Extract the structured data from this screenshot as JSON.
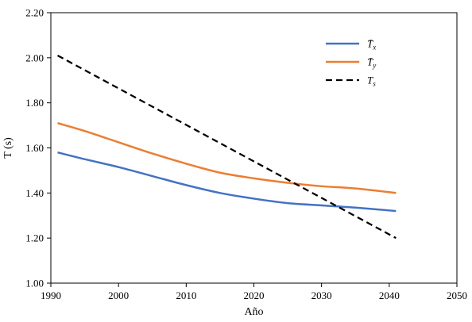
{
  "chart_data": {
    "type": "line",
    "xlabel": "Año",
    "ylabel": "T (s)",
    "xlim": [
      1990,
      2050
    ],
    "ylim": [
      1.0,
      2.2
    ],
    "xticks": [
      1990,
      2000,
      2010,
      2020,
      2030,
      2040,
      2050
    ],
    "xtick_labels": [
      "1990",
      "2000",
      "2010",
      "2020",
      "2030",
      "2040",
      "2050"
    ],
    "yticks": [
      1.0,
      1.2,
      1.4,
      1.6,
      1.8,
      2.0,
      2.2
    ],
    "ytick_labels": [
      "1.00",
      "1.20",
      "1.40",
      "1.60",
      "1.80",
      "2.00",
      "2.20"
    ],
    "grid": false,
    "legend_position": "top-right",
    "series": [
      {
        "name": "T̄x",
        "legend_base": "T̄",
        "legend_sub": "x",
        "color": "#4472C4",
        "style": "solid",
        "x": [
          1991,
          1995,
          2000,
          2005,
          2010,
          2015,
          2020,
          2025,
          2030,
          2035,
          2041
        ],
        "y": [
          1.58,
          1.55,
          1.515,
          1.475,
          1.435,
          1.4,
          1.375,
          1.355,
          1.345,
          1.335,
          1.32
        ]
      },
      {
        "name": "T̄y",
        "legend_base": "T̄",
        "legend_sub": "y",
        "color": "#ED7D31",
        "style": "solid",
        "x": [
          1991,
          1995,
          2000,
          2005,
          2010,
          2015,
          2020,
          2025,
          2030,
          2035,
          2041
        ],
        "y": [
          1.71,
          1.675,
          1.625,
          1.575,
          1.53,
          1.49,
          1.465,
          1.445,
          1.43,
          1.42,
          1.4
        ]
      },
      {
        "name": "Ts",
        "legend_base": "T",
        "legend_sub": "s",
        "color": "#000000",
        "style": "dashed",
        "x": [
          1991,
          2041
        ],
        "y": [
          2.01,
          1.2
        ]
      }
    ]
  }
}
